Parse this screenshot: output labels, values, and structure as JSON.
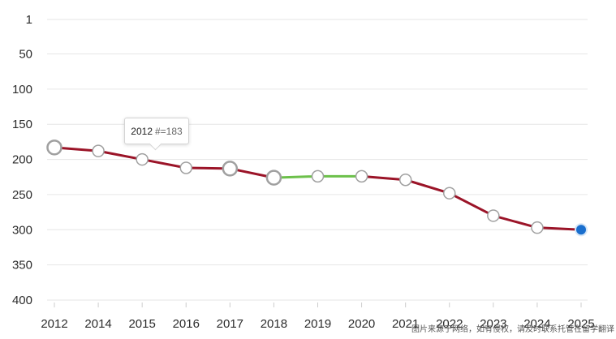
{
  "chart_data": {
    "type": "line",
    "x": [
      "2012",
      "2014",
      "2015",
      "2016",
      "2017",
      "2018",
      "2019",
      "2020",
      "2021",
      "2022",
      "2023",
      "2024",
      "2025"
    ],
    "values": [
      183,
      188,
      200,
      212,
      213,
      226,
      224,
      224,
      229,
      248,
      280,
      297,
      300
    ],
    "y_ticks": [
      1,
      50,
      100,
      150,
      200,
      250,
      300,
      350,
      400
    ],
    "ylim": [
      1,
      400
    ],
    "y_inverted": true,
    "grid": true,
    "colors": {
      "line": "#9b1428",
      "improving_segment": "#6cc04a",
      "marker_fill": "#ffffff",
      "marker_stroke": "#a0a0a0",
      "last_point": "#1a6fce"
    },
    "highlighted_segment": [
      "2018",
      "2019",
      "2020"
    ]
  },
  "tooltip": {
    "year": "2012",
    "label": "#=183"
  },
  "watermark": "图片来源于网络，如有侵权，请及时联系托管在留学翻译"
}
